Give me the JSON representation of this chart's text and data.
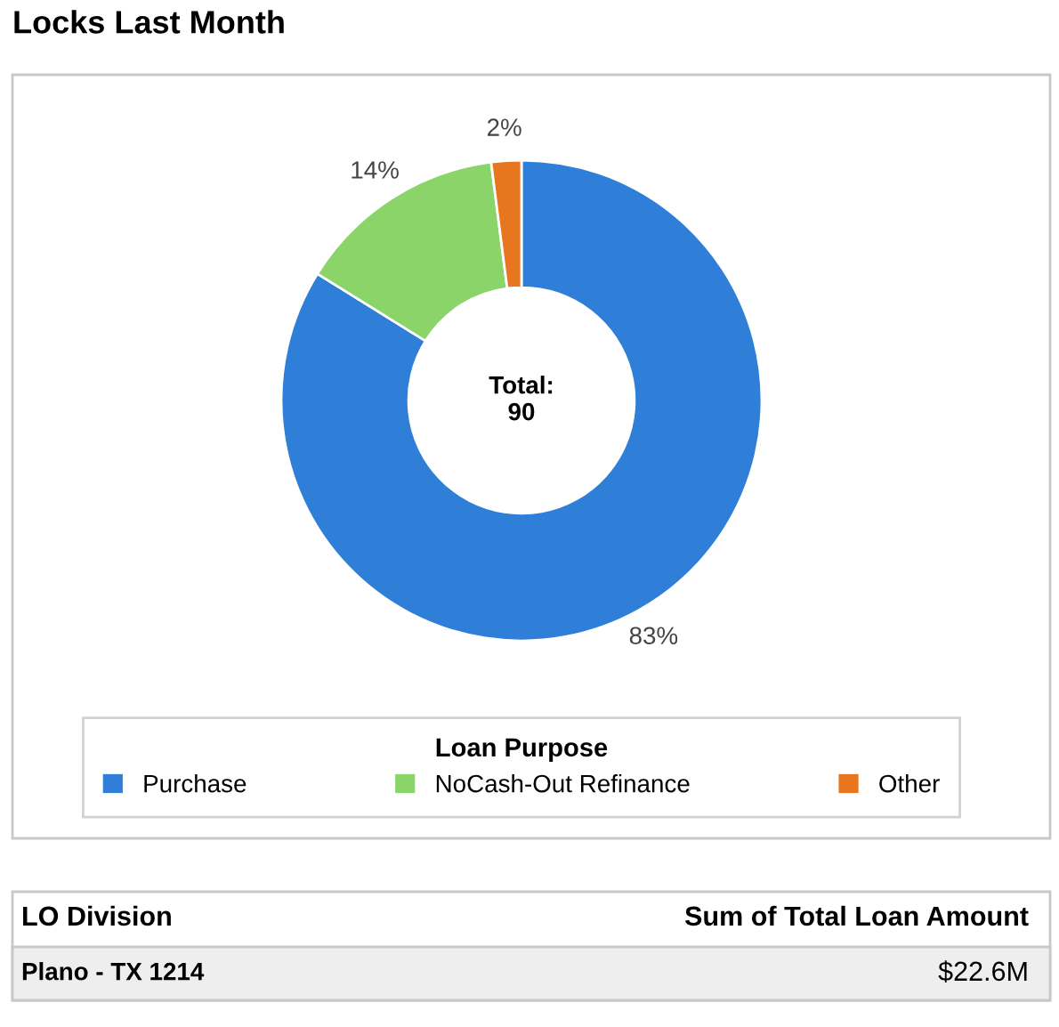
{
  "chart_data": {
    "type": "donut",
    "title": "Locks Last Month",
    "legend_title": "Loan Purpose",
    "categories": [
      "Purchase",
      "NoCash-Out Refinance",
      "Other"
    ],
    "values": [
      83,
      14,
      2
    ],
    "colors": [
      "#2f7ed8",
      "#8bd46a",
      "#e8761f"
    ],
    "value_labels": [
      "83%",
      "14%",
      "2%"
    ],
    "legend": "bottom",
    "annotations": [
      "Total:\n90",
      "LO Division",
      "Sum of Total Loan Amount",
      "Plano - TX 1214",
      "$22.6M"
    ]
  }
}
